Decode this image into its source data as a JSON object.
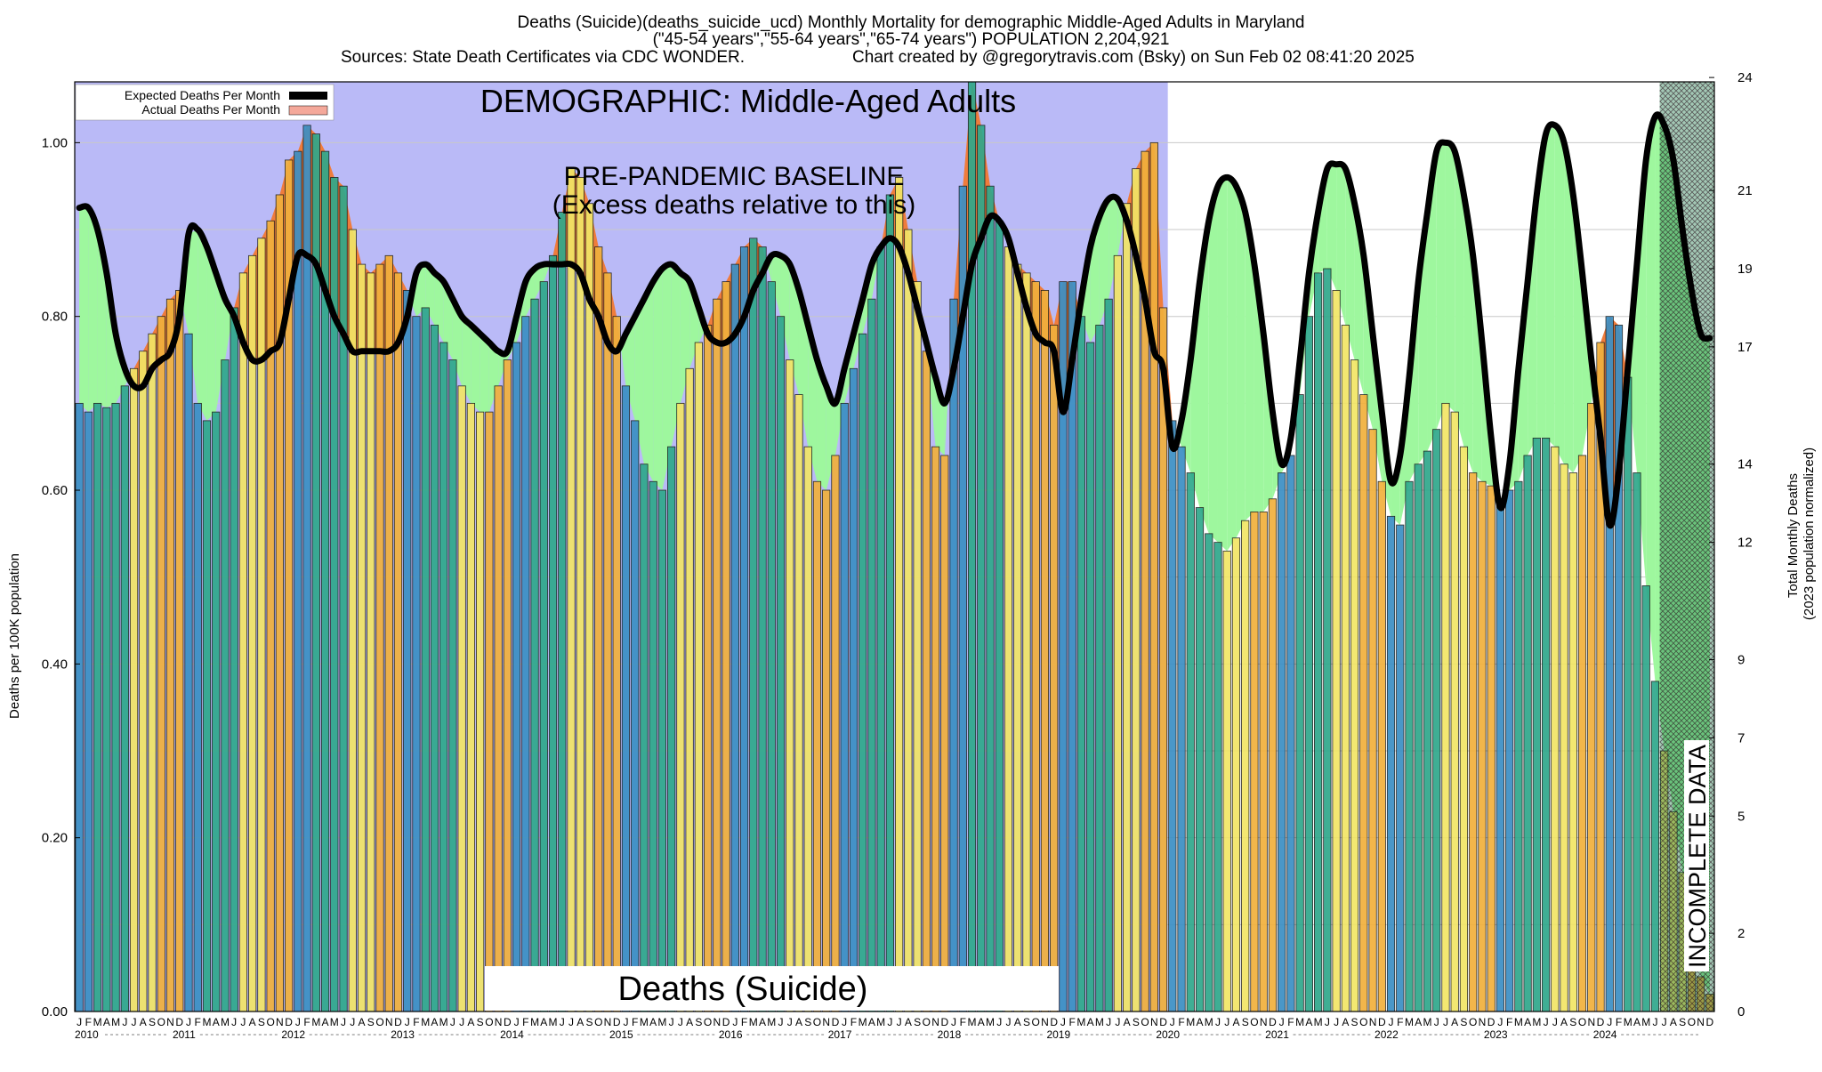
{
  "header": {
    "line1": "Deaths (Suicide)(deaths_suicide_ucd) Monthly Mortality for demographic Middle-Aged Adults in Maryland",
    "line2": "(\"45-54 years\",\"55-64 years\",\"65-74 years\") POPULATION 2,204,921",
    "line3_left": "Sources: State Death Certificates via CDC WONDER.",
    "line3_right": "Chart created by @gregorytravis.com (Bsky) on Sun Feb 02 08:41:20 2025"
  },
  "overlay": {
    "demographic": "DEMOGRAPHIC: Middle-Aged Adults",
    "baseline_line1": "PRE-PANDEMIC BASELINE",
    "baseline_line2": "(Excess deaths relative to this)",
    "cause": "Deaths (Suicide)",
    "incomplete": "INCOMPLETE DATA"
  },
  "colors": {
    "baseline_region": "#babaf7",
    "green_fill": "#9ef79e",
    "excess_fill": "#ef7c3c",
    "bar_blue": "#3b8fc4",
    "bar_teal": "#2fa88b",
    "bar_yellow": "#f2e566",
    "bar_orange": "#f1b03c",
    "expected_line": "#000000",
    "actual_legend": "#f4a89a"
  },
  "chart_data": {
    "type": "bar",
    "title": "Deaths (Suicide)(deaths_suicide_ucd) Monthly Mortality for demographic Middle-Aged Adults in Maryland",
    "ylabel_left": "Deaths per 100K population",
    "ylabel_right": "Total Monthly Deaths\n(2023 population normalized)",
    "ylim": [
      0,
      1.07
    ],
    "y_ticks_left": [
      "0.00",
      "0.20",
      "0.40",
      "0.60",
      "0.80",
      "1.00"
    ],
    "y_ticks_left_values": [
      0,
      0.2,
      0.4,
      0.6,
      0.8,
      1.0
    ],
    "y_ticks_right": [
      "0",
      "2",
      "5",
      "7",
      "9",
      "12",
      "14",
      "17",
      "19",
      "21",
      "24"
    ],
    "y_ticks_right_values": [
      0,
      0.09,
      0.225,
      0.315,
      0.405,
      0.54,
      0.63,
      0.765,
      0.855,
      0.945,
      1.075
    ],
    "month_letters": [
      "J",
      "F",
      "M",
      "A",
      "M",
      "J",
      "J",
      "A",
      "S",
      "O",
      "N",
      "D"
    ],
    "years": [
      "2010",
      "2011",
      "2012",
      "2013",
      "2014",
      "2015",
      "2016",
      "2017",
      "2018",
      "2019",
      "2020",
      "2021",
      "2022",
      "2023",
      "2024"
    ],
    "start_year": 2010,
    "baseline_end_index": 120,
    "incomplete_start_index": 174,
    "legend": [
      "Expected Deaths Per Month",
      "Actual Deaths Per Month"
    ],
    "series": [
      {
        "name": "Actual Deaths Per Month",
        "values": [
          0.7,
          0.69,
          0.7,
          0.695,
          0.7,
          0.72,
          0.74,
          0.76,
          0.78,
          0.8,
          0.82,
          0.83,
          0.78,
          0.7,
          0.68,
          0.69,
          0.75,
          0.81,
          0.85,
          0.87,
          0.89,
          0.91,
          0.94,
          0.98,
          0.99,
          1.02,
          1.01,
          0.99,
          0.96,
          0.95,
          0.9,
          0.86,
          0.85,
          0.86,
          0.87,
          0.85,
          0.83,
          0.8,
          0.81,
          0.79,
          0.77,
          0.75,
          0.72,
          0.7,
          0.69,
          0.69,
          0.72,
          0.75,
          0.77,
          0.8,
          0.82,
          0.84,
          0.87,
          0.92,
          0.97,
          0.96,
          0.93,
          0.88,
          0.85,
          0.8,
          0.72,
          0.68,
          0.63,
          0.61,
          0.6,
          0.65,
          0.7,
          0.74,
          0.77,
          0.79,
          0.82,
          0.84,
          0.86,
          0.88,
          0.89,
          0.88,
          0.84,
          0.8,
          0.75,
          0.71,
          0.65,
          0.61,
          0.6,
          0.64,
          0.7,
          0.74,
          0.78,
          0.82,
          0.88,
          0.94,
          0.96,
          0.9,
          0.84,
          0.76,
          0.65,
          0.64,
          0.82,
          0.95,
          1.07,
          1.02,
          0.95,
          0.91,
          0.88,
          0.86,
          0.85,
          0.84,
          0.83,
          0.79,
          0.84,
          0.84,
          0.8,
          0.77,
          0.79,
          0.82,
          0.87,
          0.93,
          0.97,
          0.99,
          1.0,
          0.81,
          0.68,
          0.65,
          0.62,
          0.58,
          0.55,
          0.54,
          0.53,
          0.545,
          0.565,
          0.575,
          0.575,
          0.59,
          0.62,
          0.64,
          0.71,
          0.8,
          0.85,
          0.855,
          0.83,
          0.79,
          0.75,
          0.71,
          0.67,
          0.61,
          0.57,
          0.56,
          0.61,
          0.63,
          0.645,
          0.67,
          0.7,
          0.69,
          0.65,
          0.62,
          0.61,
          0.605,
          0.59,
          0.6,
          0.61,
          0.64,
          0.66,
          0.66,
          0.65,
          0.63,
          0.62,
          0.64,
          0.7,
          0.77,
          0.8,
          0.79,
          0.73,
          0.62,
          0.49,
          0.38,
          0.3,
          0.23,
          0.16,
          0.09,
          0.04,
          0.02
        ]
      },
      {
        "name": "Expected Deaths Per Month",
        "values": [
          0.925,
          0.925,
          0.9,
          0.85,
          0.78,
          0.74,
          0.72,
          0.72,
          0.74,
          0.75,
          0.76,
          0.8,
          0.895,
          0.9,
          0.88,
          0.85,
          0.82,
          0.8,
          0.77,
          0.75,
          0.75,
          0.76,
          0.77,
          0.82,
          0.87,
          0.87,
          0.86,
          0.83,
          0.8,
          0.78,
          0.76,
          0.76,
          0.76,
          0.76,
          0.76,
          0.77,
          0.8,
          0.85,
          0.86,
          0.85,
          0.84,
          0.82,
          0.8,
          0.79,
          0.78,
          0.77,
          0.76,
          0.76,
          0.8,
          0.84,
          0.855,
          0.86,
          0.86,
          0.86,
          0.86,
          0.85,
          0.82,
          0.8,
          0.77,
          0.76,
          0.78,
          0.8,
          0.82,
          0.84,
          0.855,
          0.86,
          0.85,
          0.84,
          0.81,
          0.78,
          0.77,
          0.77,
          0.78,
          0.8,
          0.83,
          0.85,
          0.87,
          0.87,
          0.86,
          0.83,
          0.79,
          0.75,
          0.72,
          0.7,
          0.74,
          0.78,
          0.82,
          0.86,
          0.88,
          0.89,
          0.88,
          0.85,
          0.81,
          0.77,
          0.73,
          0.7,
          0.74,
          0.8,
          0.86,
          0.89,
          0.915,
          0.91,
          0.89,
          0.85,
          0.81,
          0.78,
          0.77,
          0.76,
          0.69,
          0.75,
          0.82,
          0.88,
          0.915,
          0.935,
          0.935,
          0.91,
          0.87,
          0.82,
          0.76,
          0.74,
          0.65,
          0.68,
          0.75,
          0.84,
          0.91,
          0.95,
          0.96,
          0.95,
          0.92,
          0.86,
          0.78,
          0.69,
          0.63,
          0.66,
          0.75,
          0.85,
          0.92,
          0.97,
          0.975,
          0.97,
          0.93,
          0.87,
          0.78,
          0.69,
          0.61,
          0.64,
          0.73,
          0.84,
          0.92,
          0.99,
          1.0,
          0.99,
          0.94,
          0.87,
          0.77,
          0.66,
          0.58,
          0.63,
          0.74,
          0.84,
          0.94,
          1.01,
          1.02,
          1.0,
          0.94,
          0.85,
          0.75,
          0.66,
          0.56,
          0.62,
          0.74,
          0.86,
          0.98,
          1.03,
          1.02,
          0.98,
          0.9,
          0.83,
          0.78,
          0.775
        ]
      }
    ]
  }
}
